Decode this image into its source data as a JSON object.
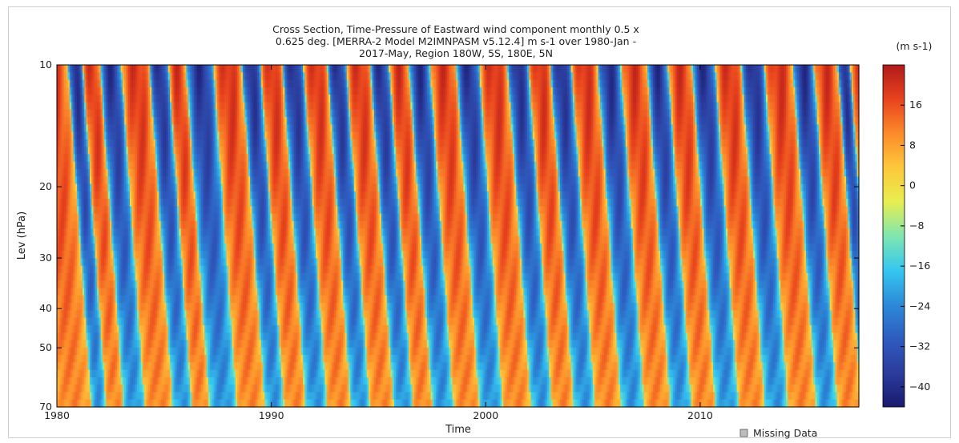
{
  "chart_data": {
    "type": "heatmap",
    "title_lines": [
      "Cross Section, Time-Pressure of Eastward wind component monthly 0.5 x",
      "0.625 deg. [MERRA-2 Model M2IMNPASM v5.12.4] m s-1 over 1980-Jan -",
      "2017-May, Region 180W, 5S, 180E, 5N"
    ],
    "xlabel": "Time",
    "ylabel": "Lev (hPa)",
    "x_ticks": [
      "1980",
      "1990",
      "2000",
      "2010"
    ],
    "x_tick_values": [
      1980,
      1990,
      2000,
      2010
    ],
    "xlim": [
      1980,
      2017.4
    ],
    "y_ticks": [
      "10",
      "20",
      "30",
      "40",
      "50",
      "70"
    ],
    "y_tick_values": [
      10,
      20,
      30,
      40,
      50,
      70
    ],
    "ylim": [
      10,
      70
    ],
    "y_scale": "log",
    "y_inverted": true,
    "colorbar": {
      "label": "(m s-1)",
      "ticks": [
        "16",
        "8",
        "0",
        "−8",
        "−16",
        "−24",
        "−32",
        "−40"
      ],
      "tick_values": [
        16,
        8,
        0,
        -8,
        -16,
        -24,
        -32,
        -40
      ],
      "range": [
        -44,
        24
      ]
    },
    "legend": {
      "missing_label": "Missing Data",
      "missing_color": "#bdbdbd",
      "placement": "bottom-right"
    },
    "easterly_onset_years_at_10hPa": [
      1980.5,
      1982.0,
      1984.3,
      1986.0,
      1988.6,
      1990.5,
      1992.6,
      1994.6,
      1996.4,
      1998.6,
      2001.0,
      2003.0,
      2005.2,
      2007.5,
      2009.6,
      2011.9,
      2014.3,
      2016.4
    ],
    "westerly_onset_years_at_10hPa": [
      1981.2,
      1983.0,
      1985.2,
      1987.3,
      1989.5,
      1991.5,
      1993.5,
      1995.5,
      1997.4,
      1999.7,
      2002.0,
      2004.0,
      2006.3,
      2008.5,
      2010.7,
      2013.0,
      2015.3,
      2017.0
    ],
    "downward_propagation_years_10_to_70hPa": 1.1,
    "value_range": [
      -40,
      20
    ]
  },
  "colors": {
    "colormap": [
      "#1a1a6e",
      "#2b3c9c",
      "#2f5cc0",
      "#2c8ad8",
      "#35c8f0",
      "#7fe6b0",
      "#e8ee50",
      "#fdc83a",
      "#fc8a2a",
      "#e8431e",
      "#b01a1a"
    ]
  }
}
